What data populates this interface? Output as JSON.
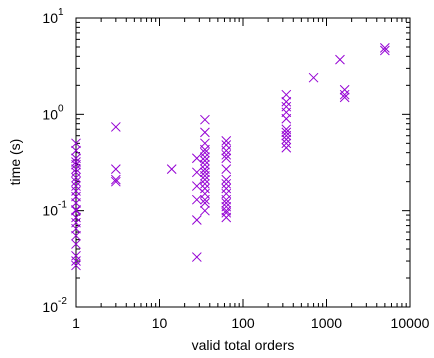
{
  "chart_data": {
    "type": "scatter",
    "xlabel": "valid total orders",
    "ylabel": "time (s)",
    "xscale": "log",
    "yscale": "log",
    "xlim": [
      1,
      10000
    ],
    "ylim": [
      0.01,
      10
    ],
    "grid": false,
    "marker": "x",
    "color": "#9400d3",
    "x_ticks": [
      {
        "value": 1,
        "label": "1"
      },
      {
        "value": 10,
        "label": "10"
      },
      {
        "value": 100,
        "label": "100"
      },
      {
        "value": 1000,
        "label": "1000"
      },
      {
        "value": 10000,
        "label": "10000"
      }
    ],
    "y_ticks": [
      {
        "value": 0.01,
        "base": "10",
        "exp": "-2"
      },
      {
        "value": 0.1,
        "base": "10",
        "exp": "-1"
      },
      {
        "value": 1,
        "base": "10",
        "exp": "0"
      },
      {
        "value": 10,
        "base": "10",
        "exp": "1"
      }
    ],
    "points": [
      {
        "x": 1,
        "y": 0.027
      },
      {
        "x": 1,
        "y": 0.03
      },
      {
        "x": 1,
        "y": 0.034
      },
      {
        "x": 1,
        "y": 0.045
      },
      {
        "x": 1,
        "y": 0.055
      },
      {
        "x": 1,
        "y": 0.065
      },
      {
        "x": 1,
        "y": 0.075
      },
      {
        "x": 1,
        "y": 0.085
      },
      {
        "x": 1,
        "y": 0.1
      },
      {
        "x": 1,
        "y": 0.102
      },
      {
        "x": 1,
        "y": 0.12
      },
      {
        "x": 1,
        "y": 0.14
      },
      {
        "x": 1,
        "y": 0.16
      },
      {
        "x": 1,
        "y": 0.18
      },
      {
        "x": 1,
        "y": 0.2
      },
      {
        "x": 1,
        "y": 0.22
      },
      {
        "x": 1,
        "y": 0.25
      },
      {
        "x": 1,
        "y": 0.27
      },
      {
        "x": 1,
        "y": 0.3
      },
      {
        "x": 1,
        "y": 0.32
      },
      {
        "x": 1,
        "y": 0.35
      },
      {
        "x": 1,
        "y": 0.42
      },
      {
        "x": 1,
        "y": 0.5
      },
      {
        "x": 3,
        "y": 0.2
      },
      {
        "x": 3,
        "y": 0.21
      },
      {
        "x": 3,
        "y": 0.27
      },
      {
        "x": 3,
        "y": 0.74
      },
      {
        "x": 14,
        "y": 0.27
      },
      {
        "x": 28,
        "y": 0.033
      },
      {
        "x": 28,
        "y": 0.08
      },
      {
        "x": 28,
        "y": 0.13
      },
      {
        "x": 28,
        "y": 0.18
      },
      {
        "x": 28,
        "y": 0.25
      },
      {
        "x": 28,
        "y": 0.35
      },
      {
        "x": 35,
        "y": 0.1
      },
      {
        "x": 35,
        "y": 0.12
      },
      {
        "x": 35,
        "y": 0.13
      },
      {
        "x": 35,
        "y": 0.15
      },
      {
        "x": 35,
        "y": 0.17
      },
      {
        "x": 35,
        "y": 0.19
      },
      {
        "x": 35,
        "y": 0.21
      },
      {
        "x": 35,
        "y": 0.23
      },
      {
        "x": 35,
        "y": 0.25
      },
      {
        "x": 35,
        "y": 0.27
      },
      {
        "x": 35,
        "y": 0.3
      },
      {
        "x": 35,
        "y": 0.33
      },
      {
        "x": 35,
        "y": 0.36
      },
      {
        "x": 35,
        "y": 0.4
      },
      {
        "x": 35,
        "y": 0.43
      },
      {
        "x": 35,
        "y": 0.5
      },
      {
        "x": 35,
        "y": 0.65
      },
      {
        "x": 35,
        "y": 0.88
      },
      {
        "x": 63,
        "y": 0.085
      },
      {
        "x": 63,
        "y": 0.095
      },
      {
        "x": 63,
        "y": 0.1
      },
      {
        "x": 63,
        "y": 0.11
      },
      {
        "x": 63,
        "y": 0.12
      },
      {
        "x": 63,
        "y": 0.13
      },
      {
        "x": 63,
        "y": 0.15
      },
      {
        "x": 63,
        "y": 0.17
      },
      {
        "x": 63,
        "y": 0.19
      },
      {
        "x": 63,
        "y": 0.21
      },
      {
        "x": 63,
        "y": 0.27
      },
      {
        "x": 63,
        "y": 0.35
      },
      {
        "x": 63,
        "y": 0.38
      },
      {
        "x": 63,
        "y": 0.42
      },
      {
        "x": 63,
        "y": 0.48
      },
      {
        "x": 63,
        "y": 0.53
      },
      {
        "x": 330,
        "y": 0.45
      },
      {
        "x": 330,
        "y": 0.5
      },
      {
        "x": 330,
        "y": 0.55
      },
      {
        "x": 330,
        "y": 0.6
      },
      {
        "x": 330,
        "y": 0.65
      },
      {
        "x": 330,
        "y": 0.7
      },
      {
        "x": 330,
        "y": 0.9
      },
      {
        "x": 330,
        "y": 1.05
      },
      {
        "x": 330,
        "y": 1.2
      },
      {
        "x": 330,
        "y": 1.35
      },
      {
        "x": 330,
        "y": 1.6
      },
      {
        "x": 700,
        "y": 2.4
      },
      {
        "x": 1450,
        "y": 3.7
      },
      {
        "x": 1650,
        "y": 1.5
      },
      {
        "x": 1650,
        "y": 1.6
      },
      {
        "x": 1650,
        "y": 1.8
      },
      {
        "x": 5000,
        "y": 4.6
      },
      {
        "x": 5000,
        "y": 4.9
      }
    ]
  }
}
